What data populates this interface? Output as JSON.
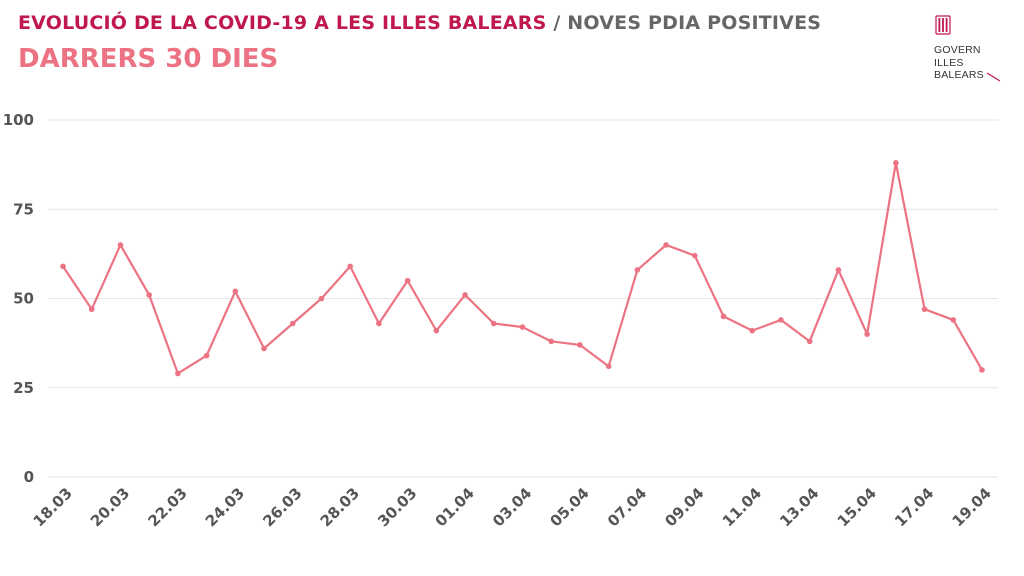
{
  "header": {
    "title_main": "EVOLUCIÓ DE LA COVID-19 A LES ILLES BALEARS",
    "title_sep": " / ",
    "title_sub": "NOVES PDIA POSITIVES",
    "subtitle": "DARRERS 30 DIES"
  },
  "logo": {
    "line1": "GOVERN",
    "line2": "ILLES",
    "line3": "BALEARS"
  },
  "colors": {
    "title": "#c0174d",
    "subtitle": "#ec7383",
    "line": "#ec7383",
    "grid": "#e6e6e6",
    "tick": "#555555"
  },
  "chart_data": {
    "type": "line",
    "title": "NOVES PDIA POSITIVES",
    "xlabel": "",
    "ylabel": "",
    "ylim": [
      0,
      100
    ],
    "yticks": [
      0,
      25,
      50,
      75,
      100
    ],
    "grid": true,
    "x": [
      "18.03",
      "19.03",
      "20.03",
      "21.03",
      "22.03",
      "23.03",
      "24.03",
      "25.03",
      "26.03",
      "27.03",
      "28.03",
      "29.03",
      "30.03",
      "31.03",
      "01.04",
      "02.04",
      "03.04",
      "04.04",
      "05.04",
      "06.04",
      "07.04",
      "08.04",
      "09.04",
      "10.04",
      "11.04",
      "12.04",
      "13.04",
      "14.04",
      "15.04",
      "16.04",
      "17.04",
      "18.04",
      "19.04"
    ],
    "xtick_labels": [
      "18.03",
      "20.03",
      "22.03",
      "24.03",
      "26.03",
      "28.03",
      "30.03",
      "01.04",
      "03.04",
      "05.04",
      "07.04",
      "09.04",
      "11.04",
      "13.04",
      "15.04",
      "17.04",
      "19.04"
    ],
    "series": [
      {
        "name": "Noves PDIA positives",
        "values": [
          59,
          47,
          65,
          51,
          29,
          34,
          52,
          36,
          43,
          50,
          59,
          43,
          55,
          41,
          51,
          43,
          42,
          38,
          37,
          31,
          58,
          65,
          62,
          45,
          41,
          44,
          38,
          58,
          40,
          88,
          47,
          44,
          30
        ]
      }
    ]
  }
}
